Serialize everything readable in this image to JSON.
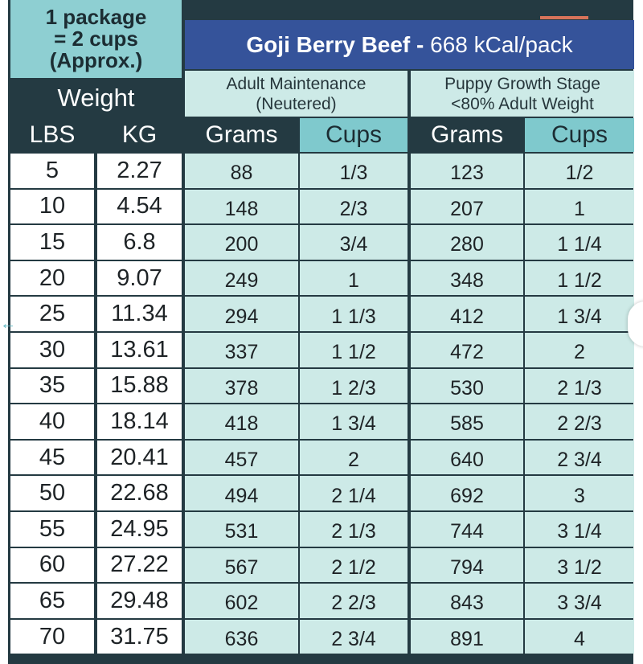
{
  "header": {
    "package_lines": [
      "1 package",
      "= 2 cups",
      "(Approx.)"
    ],
    "weight_label": "Weight",
    "lbs_label": "LBS",
    "kg_label": "KG",
    "title_bold": "Goji Berry Beef -",
    "title_rest": " 668 kCal/pack",
    "adult_line1": "Adult Maintenance",
    "adult_line2": "(Neutered)",
    "puppy_line1": "Puppy Growth Stage",
    "puppy_line2": "<80% Adult Weight",
    "grams_label": "Grams",
    "cups_label": "Cups"
  },
  "rows": [
    {
      "lbs": "5",
      "kg": "2.27",
      "adult_grams": "88",
      "adult_cups": "1/3",
      "puppy_grams": "123",
      "puppy_cups": "1/2"
    },
    {
      "lbs": "10",
      "kg": "4.54",
      "adult_grams": "148",
      "adult_cups": "2/3",
      "puppy_grams": "207",
      "puppy_cups": "1"
    },
    {
      "lbs": "15",
      "kg": "6.8",
      "adult_grams": "200",
      "adult_cups": "3/4",
      "puppy_grams": "280",
      "puppy_cups": "1 1/4"
    },
    {
      "lbs": "20",
      "kg": "9.07",
      "adult_grams": "249",
      "adult_cups": "1",
      "puppy_grams": "348",
      "puppy_cups": "1 1/2"
    },
    {
      "lbs": "25",
      "kg": "11.34",
      "adult_grams": "294",
      "adult_cups": "1 1/3",
      "puppy_grams": "412",
      "puppy_cups": "1 3/4"
    },
    {
      "lbs": "30",
      "kg": "13.61",
      "adult_grams": "337",
      "adult_cups": "1 1/2",
      "puppy_grams": "472",
      "puppy_cups": "2"
    },
    {
      "lbs": "35",
      "kg": "15.88",
      "adult_grams": "378",
      "adult_cups": "1 2/3",
      "puppy_grams": "530",
      "puppy_cups": "2 1/3"
    },
    {
      "lbs": "40",
      "kg": "18.14",
      "adult_grams": "418",
      "adult_cups": "1 3/4",
      "puppy_grams": "585",
      "puppy_cups": "2 2/3"
    },
    {
      "lbs": "45",
      "kg": "20.41",
      "adult_grams": "457",
      "adult_cups": "2",
      "puppy_grams": "640",
      "puppy_cups": "2 3/4"
    },
    {
      "lbs": "50",
      "kg": "22.68",
      "adult_grams": "494",
      "adult_cups": "2 1/4",
      "puppy_grams": "692",
      "puppy_cups": "3"
    },
    {
      "lbs": "55",
      "kg": "24.95",
      "adult_grams": "531",
      "adult_cups": "2 1/3",
      "puppy_grams": "744",
      "puppy_cups": "3 1/4"
    },
    {
      "lbs": "60",
      "kg": "27.22",
      "adult_grams": "567",
      "adult_cups": "2 1/2",
      "puppy_grams": "794",
      "puppy_cups": "3 1/2"
    },
    {
      "lbs": "65",
      "kg": "29.48",
      "adult_grams": "602",
      "adult_cups": "2 2/3",
      "puppy_grams": "843",
      "puppy_cups": "3 3/4"
    },
    {
      "lbs": "70",
      "kg": "31.75",
      "adult_grams": "636",
      "adult_cups": "2 3/4",
      "puppy_grams": "891",
      "puppy_cups": "4"
    }
  ],
  "colors": {
    "header_dark": "#243a42",
    "package_teal": "#8ecfd2",
    "title_blue": "#35539a",
    "value_bg": "#cdeae7",
    "cups_header": "#7fc9cd"
  }
}
